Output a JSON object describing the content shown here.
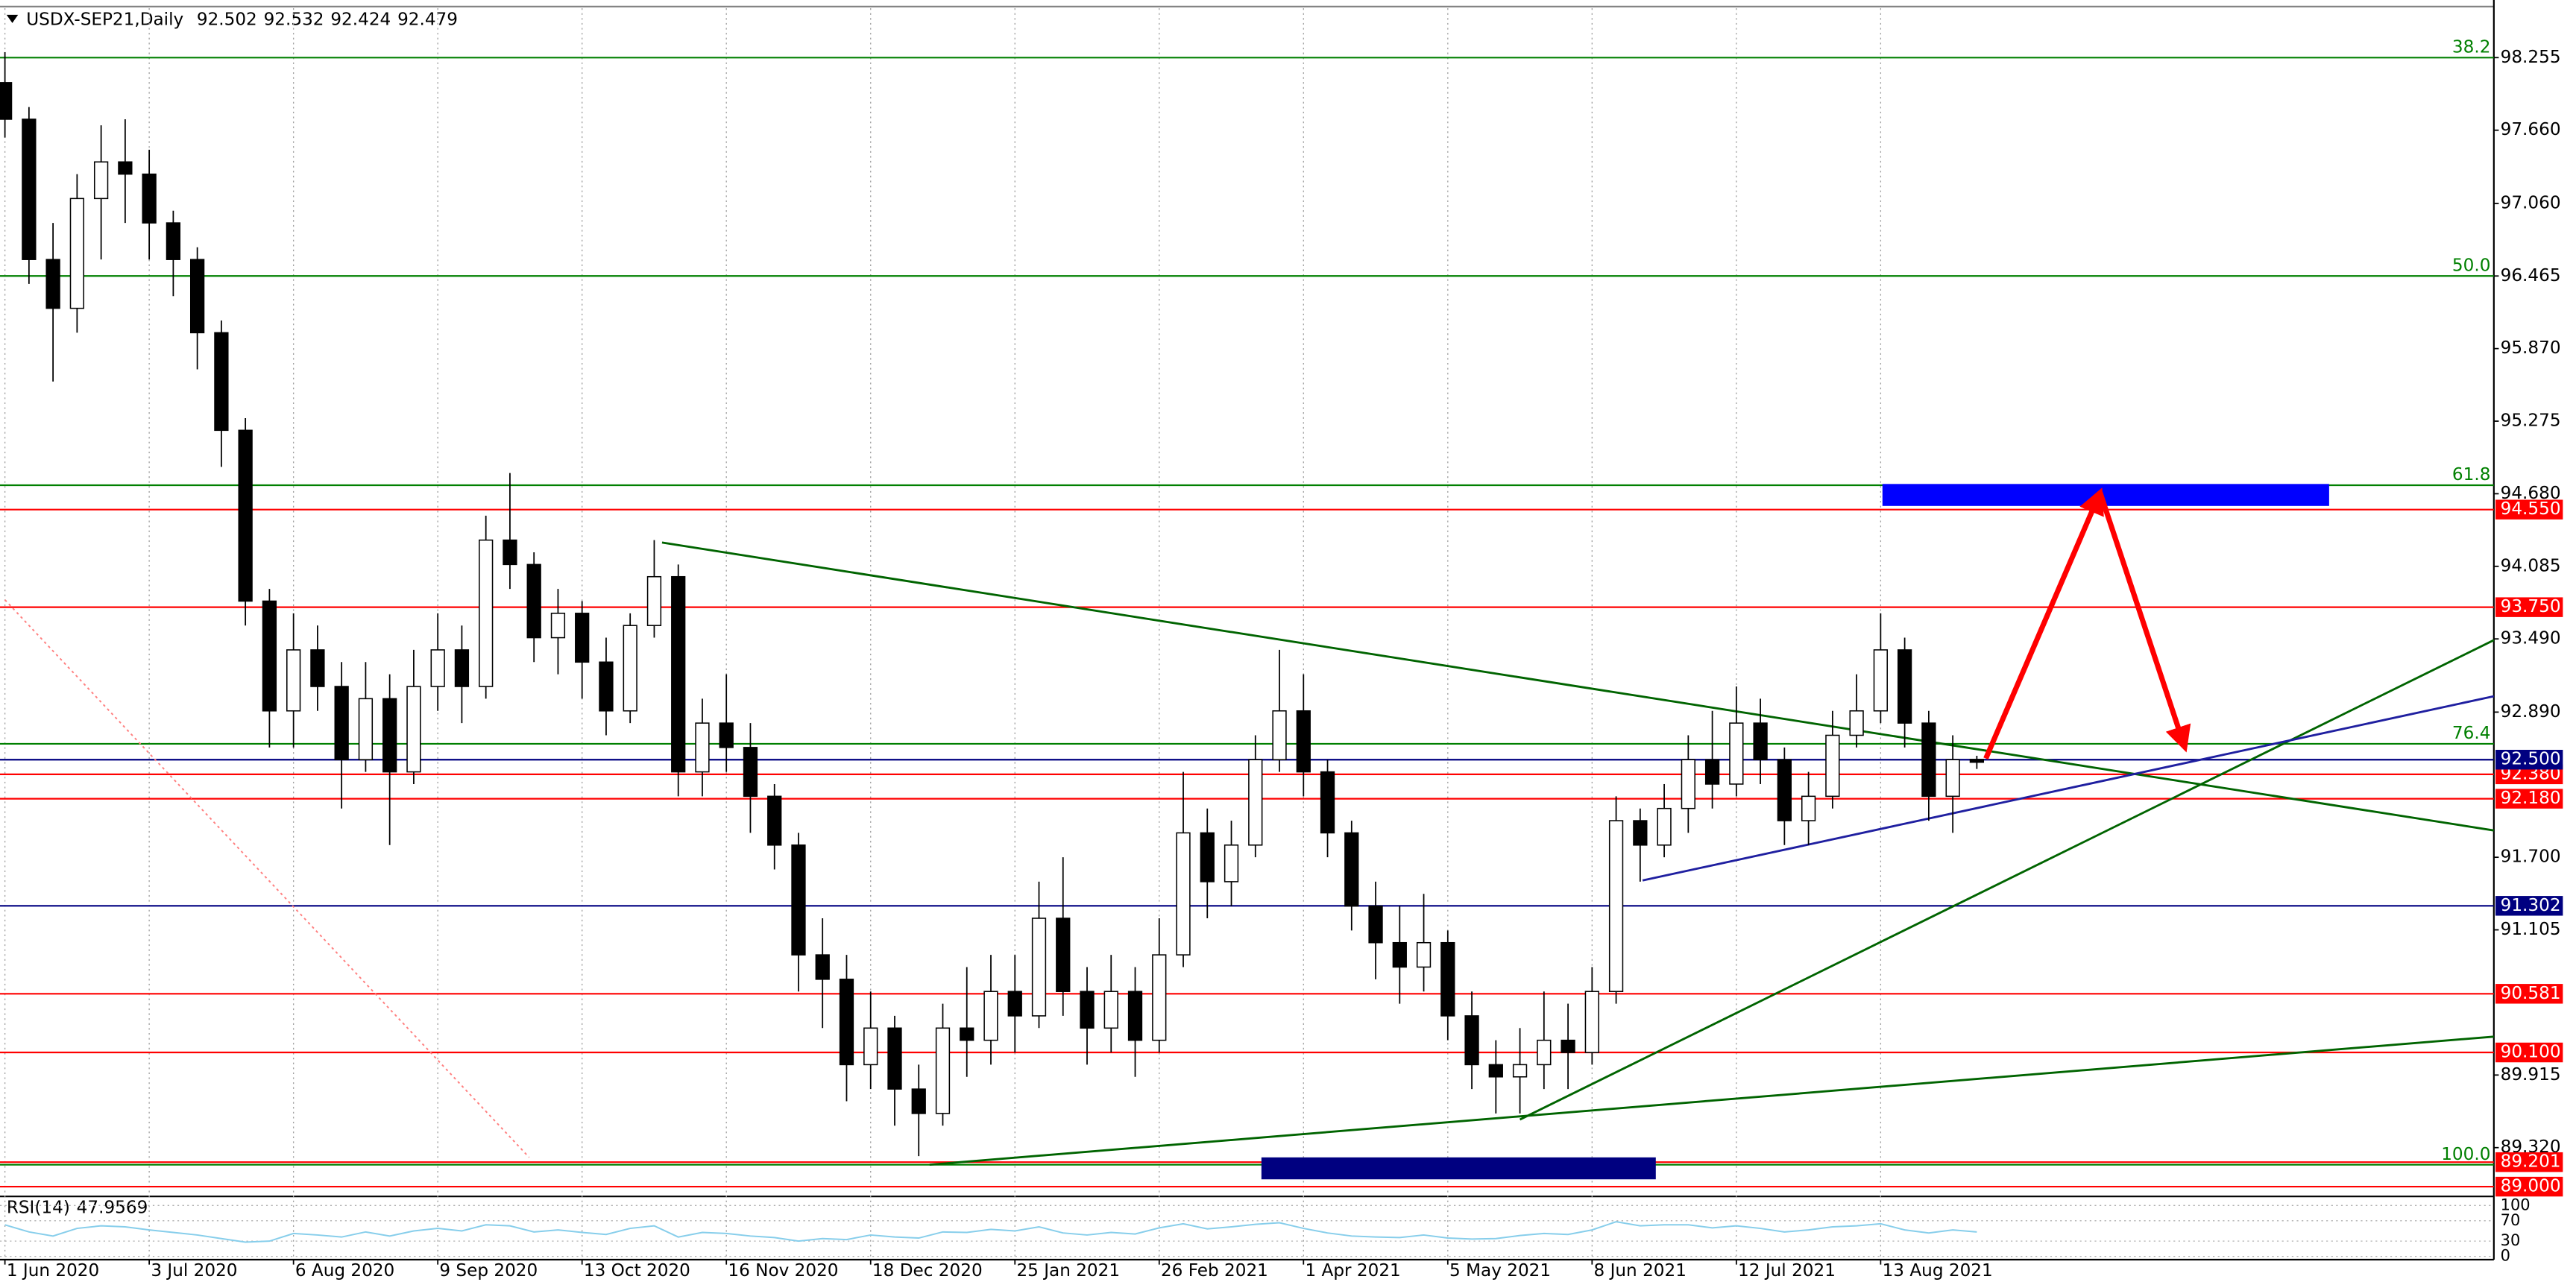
{
  "chart_data": [
    {
      "type": "candlestick",
      "title": "USDX-SEP21,Daily",
      "x": [
        0,
        4,
        8,
        12,
        16,
        20,
        24,
        28,
        32,
        36,
        40,
        44,
        48,
        52,
        56,
        60,
        64,
        68,
        72,
        76,
        80,
        84,
        88,
        92,
        96,
        100,
        104,
        108,
        112,
        116,
        120,
        124,
        128,
        132,
        136,
        140,
        144,
        148,
        152,
        156,
        160,
        164,
        168,
        172,
        176,
        180,
        184,
        188,
        192,
        196,
        200,
        204,
        208,
        212,
        216,
        220,
        224,
        228,
        232,
        236,
        240,
        244,
        248,
        252,
        256,
        260,
        264,
        268,
        272,
        276,
        280,
        284,
        288,
        292,
        296,
        300,
        304,
        308,
        312,
        316,
        320,
        324,
        328
      ],
      "open": [
        98.05,
        97.75,
        96.6,
        96.2,
        97.1,
        97.4,
        97.3,
        96.9,
        96.6,
        96.0,
        95.2,
        93.8,
        92.9,
        93.4,
        93.1,
        92.5,
        93.0,
        92.4,
        93.1,
        93.4,
        93.1,
        94.3,
        94.1,
        93.5,
        93.7,
        93.3,
        92.9,
        93.6,
        94.0,
        92.4,
        92.8,
        92.6,
        92.2,
        91.8,
        90.9,
        90.7,
        90.0,
        90.3,
        89.8,
        89.6,
        90.3,
        90.2,
        90.6,
        90.4,
        91.2,
        90.6,
        90.3,
        90.6,
        90.2,
        90.9,
        91.9,
        91.5,
        91.8,
        92.5,
        92.9,
        92.4,
        91.9,
        91.3,
        91.0,
        90.8,
        91.0,
        90.4,
        90.0,
        89.9,
        90.0,
        90.2,
        90.1,
        90.6,
        92.0,
        91.8,
        92.1,
        92.5,
        92.3,
        92.8,
        92.5,
        92.0,
        92.2,
        92.7,
        92.9,
        93.4,
        92.8,
        92.2,
        92.502
      ],
      "high": [
        98.3,
        97.85,
        96.9,
        97.3,
        97.7,
        97.75,
        97.5,
        97.0,
        96.7,
        96.1,
        95.3,
        93.9,
        93.7,
        93.6,
        93.3,
        93.3,
        93.2,
        93.4,
        93.7,
        93.6,
        94.5,
        94.85,
        94.2,
        93.9,
        93.8,
        93.5,
        93.7,
        94.3,
        94.1,
        93.0,
        93.2,
        92.8,
        92.3,
        91.9,
        91.2,
        90.9,
        90.6,
        90.4,
        90.0,
        90.5,
        90.8,
        90.9,
        90.9,
        91.5,
        91.7,
        90.8,
        90.9,
        90.8,
        91.2,
        92.4,
        92.1,
        92.0,
        92.7,
        93.4,
        93.2,
        92.5,
        92.0,
        91.5,
        91.3,
        91.4,
        91.1,
        90.6,
        90.2,
        90.3,
        90.6,
        90.5,
        90.8,
        92.2,
        92.1,
        92.3,
        92.7,
        92.9,
        93.1,
        93.0,
        92.6,
        92.4,
        92.9,
        93.2,
        93.7,
        93.5,
        92.9,
        92.7,
        92.532
      ],
      "low": [
        97.6,
        96.4,
        95.6,
        96.0,
        96.6,
        96.9,
        96.6,
        96.3,
        95.7,
        94.9,
        93.6,
        92.6,
        92.6,
        92.9,
        92.1,
        92.4,
        91.8,
        92.3,
        92.9,
        92.8,
        93.0,
        93.9,
        93.3,
        93.2,
        93.0,
        92.7,
        92.8,
        93.5,
        92.2,
        92.2,
        92.4,
        91.9,
        91.6,
        90.6,
        90.3,
        89.7,
        89.8,
        89.5,
        89.25,
        89.5,
        89.9,
        90.0,
        90.1,
        90.3,
        90.4,
        90.0,
        90.1,
        89.9,
        90.1,
        90.8,
        91.2,
        91.3,
        91.7,
        92.4,
        92.2,
        91.7,
        91.1,
        90.7,
        90.5,
        90.6,
        90.2,
        89.8,
        89.6,
        89.6,
        89.8,
        89.8,
        90.0,
        90.5,
        91.5,
        91.7,
        91.9,
        92.1,
        92.2,
        92.3,
        91.8,
        91.8,
        92.1,
        92.6,
        92.8,
        92.6,
        92.0,
        91.9,
        92.424
      ],
      "close": [
        97.75,
        96.6,
        96.2,
        97.1,
        97.4,
        97.3,
        96.9,
        96.6,
        96.0,
        95.2,
        93.8,
        92.9,
        93.4,
        93.1,
        92.5,
        93.0,
        92.4,
        93.1,
        93.4,
        93.1,
        94.3,
        94.1,
        93.5,
        93.7,
        93.3,
        92.9,
        93.6,
        94.0,
        92.4,
        92.8,
        92.6,
        92.2,
        91.8,
        90.9,
        90.7,
        90.0,
        90.3,
        89.8,
        89.6,
        90.3,
        90.2,
        90.6,
        90.4,
        91.2,
        90.6,
        90.3,
        90.6,
        90.2,
        90.9,
        91.9,
        91.5,
        91.8,
        92.5,
        92.9,
        92.4,
        91.9,
        91.3,
        91.0,
        90.8,
        91.0,
        90.4,
        90.0,
        89.9,
        90.0,
        90.2,
        90.1,
        90.6,
        92.0,
        91.8,
        92.1,
        92.5,
        92.3,
        92.8,
        92.5,
        92.0,
        92.2,
        92.7,
        92.9,
        93.4,
        92.8,
        92.2,
        92.5,
        92.479
      ],
      "up_color": "#ffffff",
      "down_color": "#000000",
      "xlim": [
        -0.82,
        414
      ],
      "xticks": [
        {
          "value": 0,
          "label": "1 Jun 2020"
        },
        {
          "value": 24,
          "label": "3 Jul 2020"
        },
        {
          "value": 48,
          "label": "6 Aug 2020"
        },
        {
          "value": 72,
          "label": "9 Sep 2020"
        },
        {
          "value": 96,
          "label": "13 Oct 2020"
        },
        {
          "value": 120,
          "label": "16 Nov 2020"
        },
        {
          "value": 144,
          "label": "18 Dec 2020"
        },
        {
          "value": 168,
          "label": "25 Jan 2021"
        },
        {
          "value": 192,
          "label": "26 Feb 2021"
        },
        {
          "value": 216,
          "label": "1 Apr 2021"
        },
        {
          "value": 240,
          "label": "5 May 2021"
        },
        {
          "value": 264,
          "label": "8 Jun 2021"
        },
        {
          "value": 288,
          "label": "12 Jul 2021"
        },
        {
          "value": 312,
          "label": "13 Aug 2021"
        }
      ],
      "ylim": [
        88.94,
        98.66
      ],
      "yticks": [
        98.255,
        {
          "value": 97.66,
          "label": "97.660"
        },
        {
          "value": 97.06,
          "label": "97.060"
        },
        96.465,
        {
          "value": 95.87,
          "label": "95.870"
        },
        95.275,
        {
          "value": 94.68,
          "label": "94.680"
        },
        94.085,
        {
          "value": 93.49,
          "label": "93.490"
        },
        {
          "value": 92.89,
          "label": "92.890"
        },
        {
          "value": 91.7,
          "label": "91.700"
        },
        91.105,
        89.915,
        {
          "value": 89.32,
          "label": "89.320"
        }
      ],
      "grid": true,
      "levels": [
        {
          "value": 98.255,
          "label": "38.2",
          "color": "#008000",
          "tag": "fib"
        },
        {
          "value": 96.465,
          "label": "50.0",
          "color": "#008000",
          "tag": "fib"
        },
        {
          "value": 94.75,
          "label": "61.8",
          "color": "#008000",
          "tag": "fib"
        },
        {
          "value": 92.63,
          "label": "76.4",
          "color": "#008000",
          "tag": "fib"
        },
        {
          "value": 89.18,
          "label": "100.0",
          "color": "#008000",
          "tag": "fib"
        },
        {
          "value": 94.55,
          "label": "94.550",
          "color": "#ff0000",
          "tag": "axis"
        },
        {
          "value": 93.75,
          "label": "93.750",
          "color": "#ff0000",
          "tag": "axis"
        },
        {
          "value": 92.38,
          "label": "92.380",
          "color": "#ff0000",
          "tag": "axis"
        },
        {
          "value": 92.5,
          "label": "92.500",
          "color": "#000080",
          "tag": "axis"
        },
        {
          "value": 92.18,
          "label": "92.180",
          "color": "#ff0000",
          "tag": "axis"
        },
        {
          "value": 91.302,
          "label": "91.302",
          "color": "#000080",
          "tag": "axis"
        },
        {
          "value": 90.581,
          "label": "90.581",
          "color": "#ff0000",
          "tag": "axis"
        },
        {
          "value": 90.1,
          "label": "90.100",
          "color": "#ff0000",
          "tag": "axis"
        },
        {
          "value": 89.201,
          "label": "89.201",
          "color": "#ff0000",
          "tag": "axis"
        },
        {
          "value": 89.0,
          "label": "89.000",
          "color": "#ff0000",
          "tag": "axis"
        }
      ],
      "trendlines": [
        {
          "x": [
            109.3,
            414
          ],
          "y": [
            94.28,
            91.92
          ],
          "color": "#006400",
          "style": "solid"
        },
        {
          "x": [
            153.8,
            414
          ],
          "y": [
            89.18,
            90.23
          ],
          "color": "#006400",
          "style": "solid"
        },
        {
          "x": [
            252,
            414
          ],
          "y": [
            89.55,
            93.48
          ],
          "color": "#006400",
          "style": "solid"
        },
        {
          "x": [
            272.4,
            414
          ],
          "y": [
            91.51,
            93.02
          ],
          "color": "#1f1fa0",
          "style": "solid"
        },
        {
          "x": [
            0,
            87.2
          ],
          "y": [
            93.81,
            89.24
          ],
          "color": "#ff8080",
          "style": "dotted"
        }
      ],
      "zones": [
        {
          "x": [
            312.3,
            386.6
          ],
          "y": [
            94.58,
            94.76
          ],
          "color": "#0000ff"
        },
        {
          "x": [
            209,
            274.6
          ],
          "y": [
            89.06,
            89.24
          ],
          "color": "#000080"
        }
      ],
      "arrows": [
        {
          "x": [
            329.5,
            348.5
          ],
          "y": [
            92.51,
            94.69
          ],
          "color": "#ff0000"
        },
        {
          "x": [
            348.5,
            362.6
          ],
          "y": [
            94.69,
            92.6
          ],
          "color": "#ff0000"
        }
      ]
    },
    {
      "type": "line",
      "name": "RSI(14)",
      "x": [
        0,
        4,
        8,
        12,
        16,
        20,
        24,
        28,
        32,
        36,
        40,
        44,
        48,
        52,
        56,
        60,
        64,
        68,
        72,
        76,
        80,
        84,
        88,
        92,
        96,
        100,
        104,
        108,
        112,
        116,
        120,
        124,
        128,
        132,
        136,
        140,
        144,
        148,
        152,
        156,
        160,
        164,
        168,
        172,
        176,
        180,
        184,
        188,
        192,
        196,
        200,
        204,
        208,
        212,
        216,
        220,
        224,
        228,
        232,
        236,
        240,
        244,
        248,
        252,
        256,
        260,
        264,
        268,
        272,
        276,
        280,
        284,
        288,
        292,
        296,
        300,
        304,
        308,
        312,
        316,
        320,
        324,
        328
      ],
      "values": [
        62,
        48,
        40,
        55,
        60,
        58,
        52,
        47,
        42,
        35,
        28,
        30,
        45,
        42,
        38,
        48,
        40,
        50,
        55,
        50,
        62,
        60,
        48,
        52,
        47,
        43,
        55,
        60,
        38,
        47,
        45,
        40,
        37,
        30,
        35,
        33,
        42,
        38,
        36,
        48,
        47,
        53,
        50,
        58,
        46,
        42,
        47,
        44,
        56,
        64,
        54,
        58,
        63,
        66,
        55,
        46,
        40,
        38,
        37,
        42,
        36,
        34,
        35,
        41,
        45,
        43,
        52,
        68,
        60,
        62,
        62,
        56,
        60,
        55,
        48,
        52,
        58,
        60,
        64,
        52,
        46,
        52,
        47.9569
      ],
      "color": "#87ceeb",
      "xlim": [
        -0.82,
        414
      ],
      "ylim": [
        0,
        100
      ],
      "yticks": [
        100,
        70,
        30,
        0
      ]
    }
  ]
}
